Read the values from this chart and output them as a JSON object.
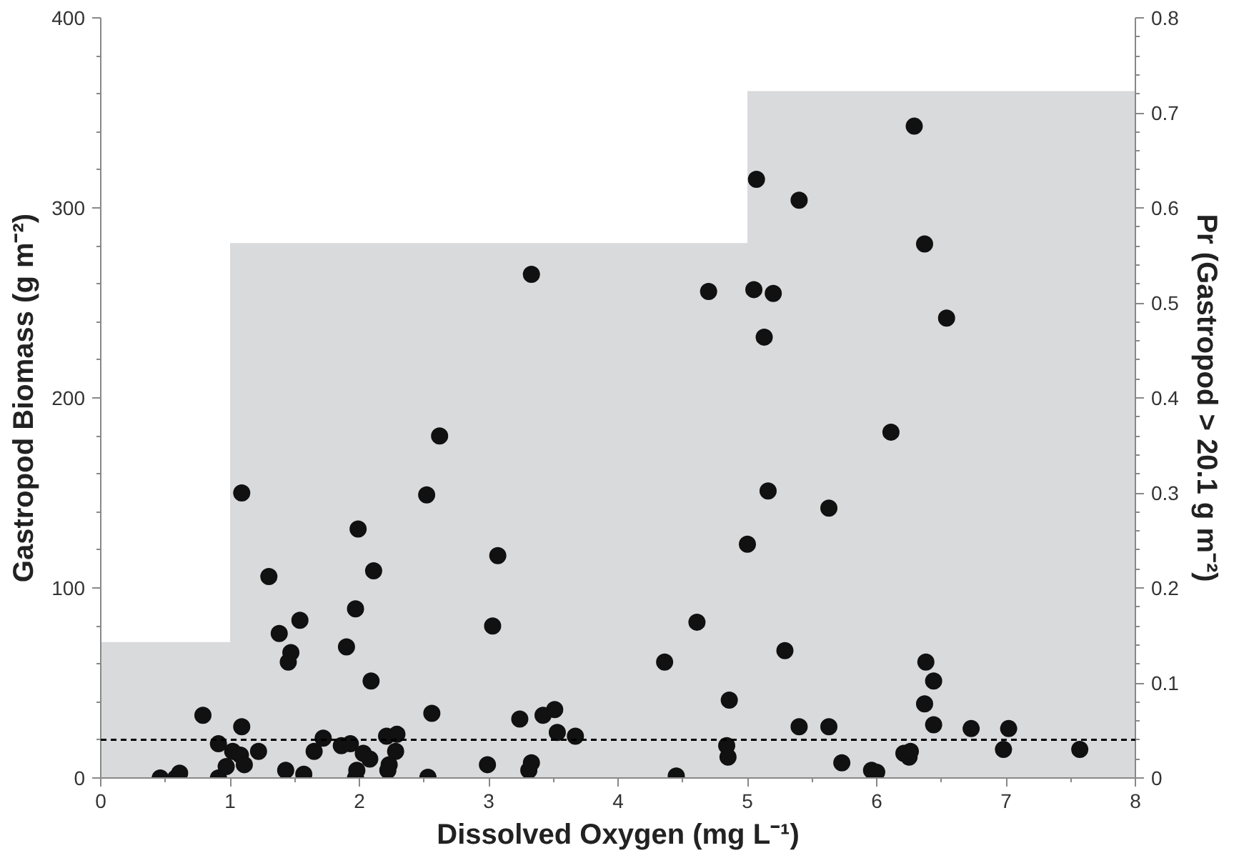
{
  "chart_data": {
    "type": "scatter",
    "xlabel": "Dissolved Oxygen (mg L⁻¹)",
    "ylabel": "Gastropod Biomass (g m⁻²)",
    "y2label": "Pr (Gastropod > 20.1 g m⁻²)",
    "xlim": [
      0,
      8
    ],
    "xticks": [
      0,
      1,
      2,
      3,
      4,
      5,
      6,
      7,
      8
    ],
    "ylim": [
      0,
      400
    ],
    "yticks": [
      0,
      100,
      200,
      300,
      400
    ],
    "y2lim": [
      0,
      0.8
    ],
    "y2ticks": [
      0,
      0.1,
      0.2,
      0.3,
      0.4,
      0.5,
      0.6,
      0.7,
      0.8
    ],
    "grid": false,
    "series": [
      {
        "type": "area",
        "axis": "y2",
        "color": "#d9dadc",
        "x": [
          0,
          1,
          1,
          5,
          5,
          8
        ],
        "values": [
          0.143,
          0.143,
          0.563,
          0.563,
          0.723,
          0.723
        ]
      },
      {
        "marker": "circle",
        "color": "#111111",
        "x": [
          0.46,
          0.58,
          0.61,
          0.79,
          0.91,
          0.91,
          0.97,
          1.02,
          1.09,
          1.09,
          1.08,
          1.11,
          1.22,
          1.3,
          1.38,
          1.47,
          1.45,
          1.43,
          1.54,
          1.57,
          1.65,
          1.72,
          1.9,
          1.86,
          1.93,
          1.97,
          1.99,
          1.97,
          1.98,
          2.03,
          2.08,
          2.09,
          2.11,
          2.21,
          2.23,
          2.22,
          2.29,
          2.28,
          2.52,
          2.56,
          2.53,
          2.62,
          2.99,
          3.03,
          3.07,
          3.24,
          3.33,
          3.33,
          3.31,
          3.42,
          3.51,
          3.53,
          3.67,
          4.36,
          4.45,
          4.61,
          4.7,
          4.84,
          4.85,
          4.86,
          5.0,
          5.05,
          5.07,
          5.13,
          5.16,
          5.2,
          5.29,
          5.4,
          5.4,
          5.63,
          5.63,
          5.73,
          5.96,
          6.0,
          6.11,
          6.21,
          6.25,
          6.26,
          6.29,
          6.37,
          6.38,
          6.37,
          6.44,
          6.44,
          6.54,
          6.73,
          6.98,
          7.02,
          7.57
        ],
        "values": [
          0,
          0,
          2.5,
          33,
          18,
          0,
          6,
          14,
          150,
          27,
          12,
          7,
          14,
          106,
          76,
          66,
          61,
          4,
          83,
          2,
          14,
          21,
          69,
          17,
          18,
          89,
          131,
          0,
          4,
          13,
          10,
          51,
          109,
          22,
          7,
          4,
          23,
          14,
          149,
          34,
          0.4,
          180,
          7,
          80,
          117,
          31,
          265,
          8,
          4,
          33,
          36,
          24,
          22,
          61,
          1,
          82,
          256,
          17,
          11,
          41,
          123,
          257,
          315,
          232,
          151,
          255,
          67,
          304,
          27,
          142,
          27,
          8,
          4,
          3,
          182,
          13,
          11,
          14,
          343,
          281,
          61,
          39,
          51,
          28,
          242,
          26,
          15,
          26,
          15
        ]
      }
    ],
    "ref_lines": [
      {
        "axis": "y",
        "value": 20.1,
        "color": "#000000",
        "line_style": "dashed"
      }
    ]
  }
}
